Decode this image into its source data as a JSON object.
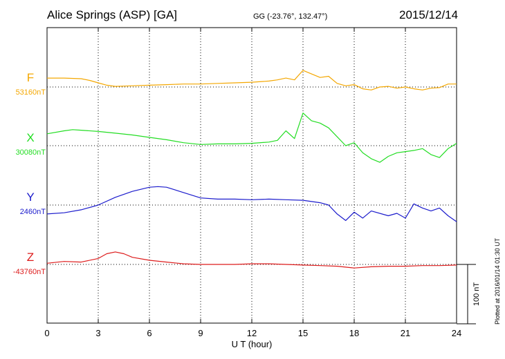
{
  "header": {
    "station": "Alice Springs (ASP)  [GA]",
    "coords": "GG (-23.76°, 132.47°)",
    "date": "2015/12/14"
  },
  "footer": {
    "plotted": "Plotted at 2016/01/14 01:30 UT"
  },
  "scale_bar": {
    "label": "100 nT",
    "value_nT": 100
  },
  "colors": {
    "F": "#f4a700",
    "X": "#22dd22",
    "Y": "#1a1acc",
    "Z": "#dd1a1a"
  },
  "chart_data": {
    "type": "line",
    "title": "",
    "xlabel": "U T (hour)",
    "xlim": [
      0,
      24
    ],
    "xticks": [
      0,
      3,
      6,
      9,
      12,
      15,
      18,
      21,
      24
    ],
    "grid": true,
    "series": [
      {
        "name": "F",
        "baseline_label": "53160nT",
        "baseline_nT": 53160,
        "points": [
          [
            0,
            15
          ],
          [
            1,
            15
          ],
          [
            2,
            14
          ],
          [
            2.5,
            11
          ],
          [
            3,
            7
          ],
          [
            3.5,
            3
          ],
          [
            4,
            1
          ],
          [
            5,
            2
          ],
          [
            6,
            3
          ],
          [
            7,
            4
          ],
          [
            8,
            5
          ],
          [
            9,
            5
          ],
          [
            10,
            6
          ],
          [
            11,
            7
          ],
          [
            12,
            8
          ],
          [
            13,
            10
          ],
          [
            13.5,
            12
          ],
          [
            14,
            15
          ],
          [
            14.5,
            12
          ],
          [
            15,
            28
          ],
          [
            15.5,
            22
          ],
          [
            16,
            16
          ],
          [
            16.5,
            18
          ],
          [
            17,
            6
          ],
          [
            17.5,
            2
          ],
          [
            18,
            4
          ],
          [
            18.5,
            -3
          ],
          [
            19,
            -5
          ],
          [
            19.5,
            0
          ],
          [
            20,
            1
          ],
          [
            20.5,
            -2
          ],
          [
            21,
            0
          ],
          [
            21.5,
            -3
          ],
          [
            22,
            -5
          ],
          [
            22.5,
            -2
          ],
          [
            23,
            -1
          ],
          [
            23.5,
            5
          ],
          [
            24,
            5
          ]
        ]
      },
      {
        "name": "X",
        "baseline_label": "30080nT",
        "baseline_nT": 30080,
        "points": [
          [
            0,
            20
          ],
          [
            1,
            25
          ],
          [
            1.5,
            27
          ],
          [
            2,
            26
          ],
          [
            3,
            24
          ],
          [
            4,
            21
          ],
          [
            5,
            18
          ],
          [
            6,
            14
          ],
          [
            7,
            10
          ],
          [
            8,
            5
          ],
          [
            9,
            2
          ],
          [
            10,
            3
          ],
          [
            11,
            3
          ],
          [
            12,
            4
          ],
          [
            13,
            6
          ],
          [
            13.5,
            9
          ],
          [
            14,
            25
          ],
          [
            14.5,
            12
          ],
          [
            15,
            55
          ],
          [
            15.5,
            42
          ],
          [
            16,
            38
          ],
          [
            16.5,
            30
          ],
          [
            17,
            15
          ],
          [
            17.5,
            0
          ],
          [
            18,
            5
          ],
          [
            18.5,
            -12
          ],
          [
            19,
            -22
          ],
          [
            19.5,
            -28
          ],
          [
            20,
            -18
          ],
          [
            20.5,
            -12
          ],
          [
            21,
            -10
          ],
          [
            21.5,
            -8
          ],
          [
            22,
            -5
          ],
          [
            22.5,
            -15
          ],
          [
            23,
            -20
          ],
          [
            23.5,
            -5
          ],
          [
            24,
            4
          ]
        ]
      },
      {
        "name": "Y",
        "baseline_label": "2460nT",
        "baseline_nT": 2460,
        "points": [
          [
            0,
            -15
          ],
          [
            1,
            -13
          ],
          [
            2,
            -8
          ],
          [
            3,
            0
          ],
          [
            4,
            13
          ],
          [
            5,
            23
          ],
          [
            6,
            30
          ],
          [
            6.5,
            31
          ],
          [
            7,
            30
          ],
          [
            8,
            21
          ],
          [
            9,
            12
          ],
          [
            10,
            10
          ],
          [
            11,
            10
          ],
          [
            12,
            9
          ],
          [
            13,
            10
          ],
          [
            14,
            9
          ],
          [
            15,
            8
          ],
          [
            16,
            4
          ],
          [
            16.5,
            0
          ],
          [
            17,
            -15
          ],
          [
            17.5,
            -26
          ],
          [
            18,
            -12
          ],
          [
            18.5,
            -22
          ],
          [
            19,
            -10
          ],
          [
            20,
            -18
          ],
          [
            20.5,
            -14
          ],
          [
            21,
            -22
          ],
          [
            21.5,
            2
          ],
          [
            22,
            -5
          ],
          [
            22.5,
            -10
          ],
          [
            23,
            -5
          ],
          [
            23.5,
            -18
          ],
          [
            24,
            -28
          ]
        ]
      },
      {
        "name": "Z",
        "baseline_label": "-43760nT",
        "baseline_nT": -43760,
        "points": [
          [
            0,
            2
          ],
          [
            1,
            5
          ],
          [
            2,
            4
          ],
          [
            3,
            10
          ],
          [
            3.5,
            18
          ],
          [
            4,
            21
          ],
          [
            4.5,
            18
          ],
          [
            5,
            12
          ],
          [
            6,
            7
          ],
          [
            7,
            4
          ],
          [
            8,
            1
          ],
          [
            9,
            0
          ],
          [
            10,
            0
          ],
          [
            11,
            0
          ],
          [
            12,
            1
          ],
          [
            13,
            1
          ],
          [
            14,
            0
          ],
          [
            15,
            -1
          ],
          [
            16,
            -2
          ],
          [
            17,
            -3
          ],
          [
            18,
            -6
          ],
          [
            19,
            -4
          ],
          [
            20,
            -3
          ],
          [
            21,
            -3
          ],
          [
            22,
            -2
          ],
          [
            23,
            -2
          ],
          [
            24,
            -1
          ]
        ]
      }
    ]
  }
}
